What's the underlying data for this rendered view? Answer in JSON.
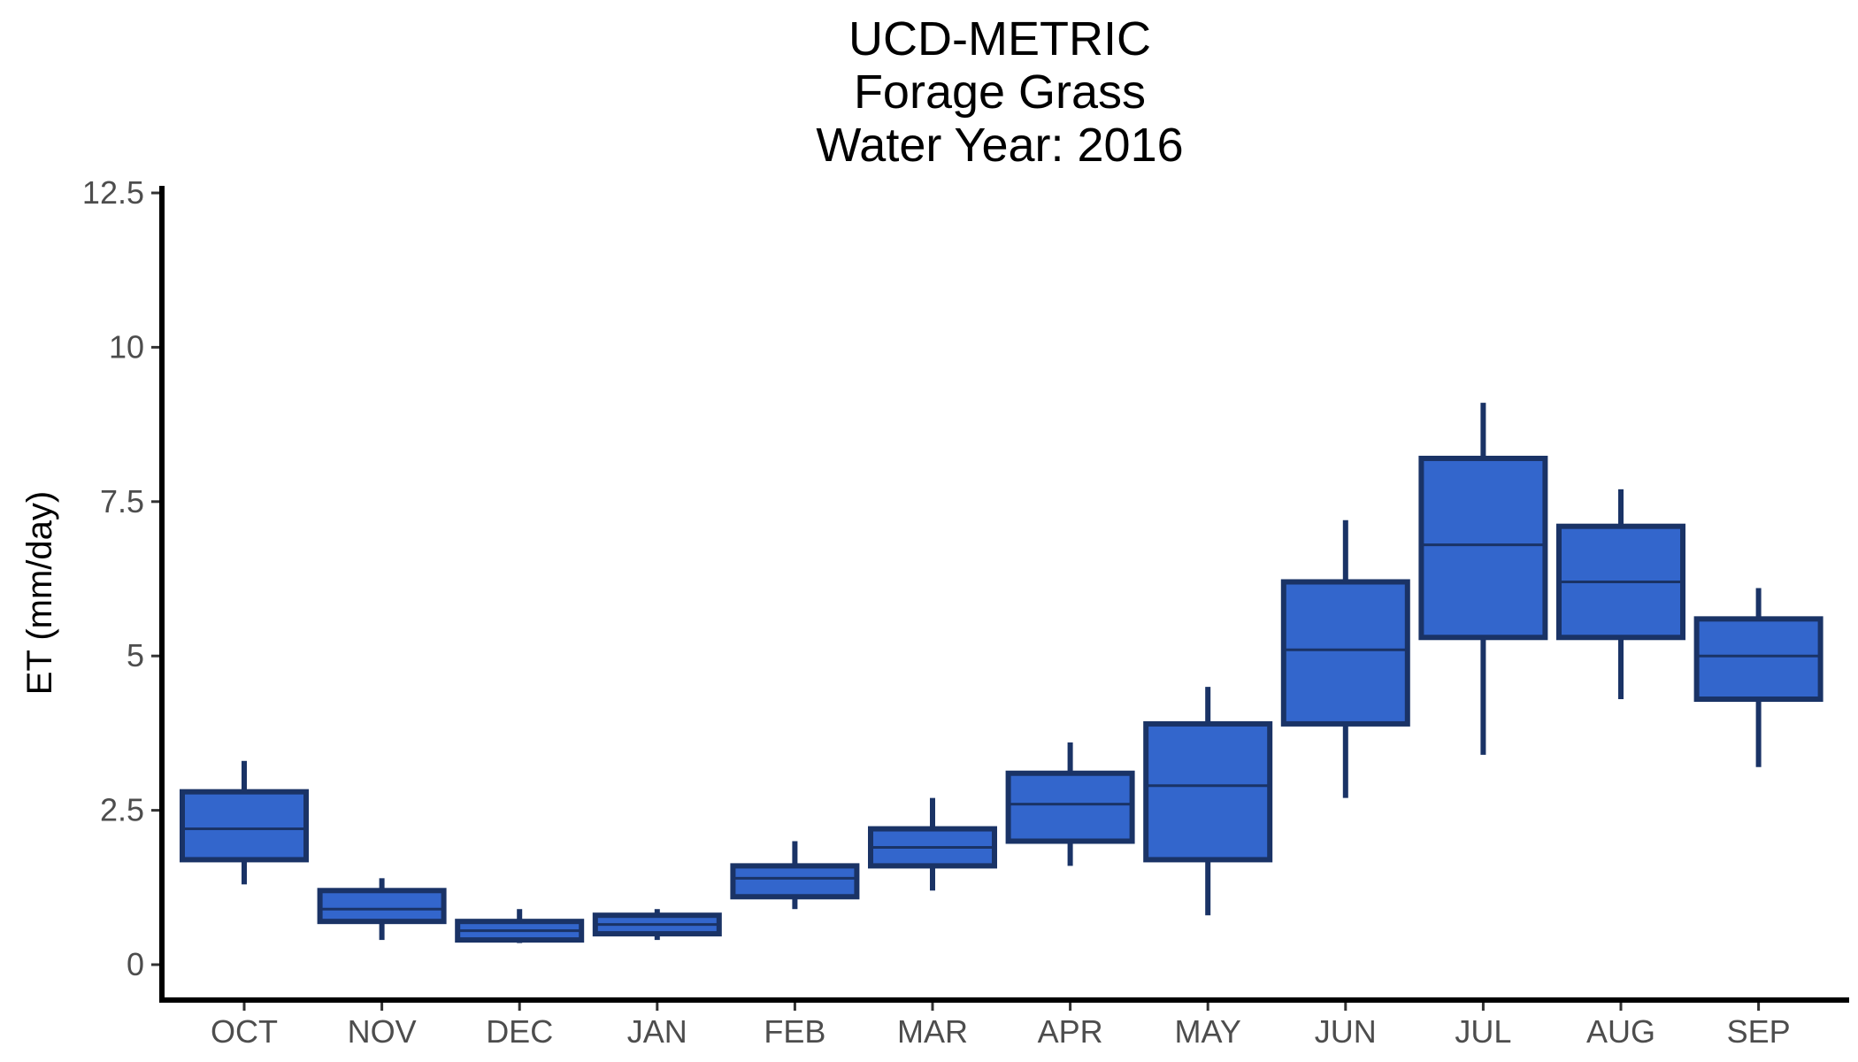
{
  "chart_data": {
    "type": "box",
    "title_lines": [
      "UCD-METRIC",
      "Forage Grass",
      "Water Year: 2016"
    ],
    "xlabel": "",
    "ylabel": "ET (mm/day)",
    "ylim": [
      0,
      12.5
    ],
    "y_ticks": [
      0,
      2.5,
      5,
      7.5,
      10,
      12.5
    ],
    "y_tick_labels": [
      "0",
      "2.5",
      "5",
      "7.5",
      "10",
      "12.5"
    ],
    "grid": false,
    "categories": [
      "OCT",
      "NOV",
      "DEC",
      "JAN",
      "FEB",
      "MAR",
      "APR",
      "MAY",
      "JUN",
      "JUL",
      "AUG",
      "SEP"
    ],
    "boxes": [
      {
        "min": 1.3,
        "q1": 1.7,
        "median": 2.2,
        "q3": 2.8,
        "max": 3.3
      },
      {
        "min": 0.4,
        "q1": 0.7,
        "median": 0.9,
        "q3": 1.2,
        "max": 1.4
      },
      {
        "min": 0.35,
        "q1": 0.4,
        "median": 0.55,
        "q3": 0.7,
        "max": 0.9
      },
      {
        "min": 0.4,
        "q1": 0.5,
        "median": 0.65,
        "q3": 0.8,
        "max": 0.9
      },
      {
        "min": 0.9,
        "q1": 1.1,
        "median": 1.4,
        "q3": 1.6,
        "max": 2.0
      },
      {
        "min": 1.2,
        "q1": 1.6,
        "median": 1.9,
        "q3": 2.2,
        "max": 2.7
      },
      {
        "min": 1.6,
        "q1": 2.0,
        "median": 2.6,
        "q3": 3.1,
        "max": 3.6
      },
      {
        "min": 0.8,
        "q1": 1.7,
        "median": 2.9,
        "q3": 3.9,
        "max": 4.5
      },
      {
        "min": 2.7,
        "q1": 3.9,
        "median": 5.1,
        "q3": 6.2,
        "max": 7.2
      },
      {
        "min": 3.4,
        "q1": 5.3,
        "median": 6.8,
        "q3": 8.2,
        "max": 9.1
      },
      {
        "min": 4.3,
        "q1": 5.3,
        "median": 6.2,
        "q3": 7.1,
        "max": 7.7
      },
      {
        "min": 3.2,
        "q1": 4.3,
        "median": 5.0,
        "q3": 5.6,
        "max": 6.1
      }
    ],
    "colors": {
      "fill": "#3366cc",
      "outline": "#1a3366"
    }
  }
}
